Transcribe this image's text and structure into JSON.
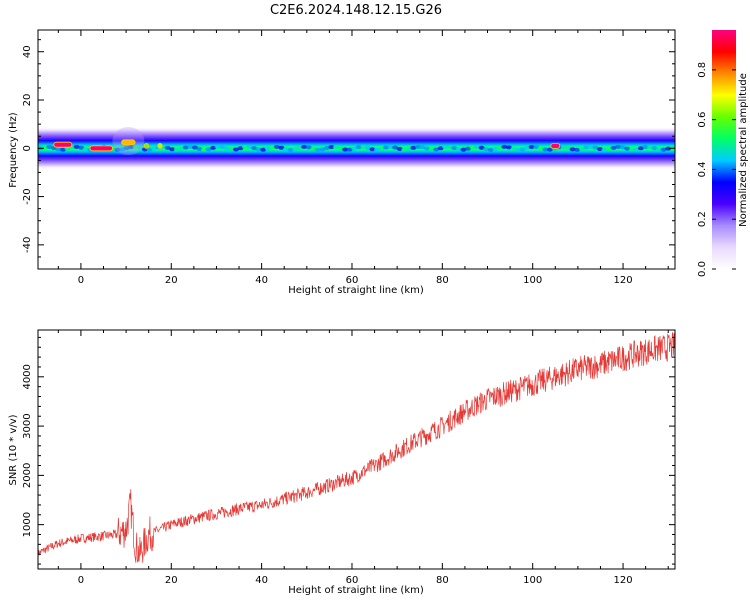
{
  "title": "C2E6.2024.148.12.15.G26",
  "chart_data": [
    {
      "type": "heatmap",
      "xlabel": "Height of straight line (km)",
      "ylabel": "Frequency (Hz)",
      "xlim": [
        -9.5,
        131.5
      ],
      "ylim": [
        -50,
        49
      ],
      "xticks": [
        0,
        20,
        40,
        60,
        80,
        100,
        120
      ],
      "yticks": [
        -40,
        -20,
        0,
        20,
        40
      ],
      "grid": false,
      "colorbar": {
        "label": "Normalized spectral amplitude",
        "range": [
          0,
          0.96
        ],
        "ticks": [
          0.0,
          0.2,
          0.4,
          0.6,
          0.8
        ]
      },
      "band": {
        "center_hz": 0,
        "half_width_outer_hz": 4,
        "half_width_core_hz": 1.8
      },
      "hotspots": [
        {
          "x": -6,
          "x2": -2,
          "y": 1.5,
          "value": 0.95
        },
        {
          "x": 2,
          "x2": 7,
          "y": 0,
          "value": 0.95
        },
        {
          "x": 9,
          "x2": 12,
          "y": 2.5,
          "value": 0.75
        },
        {
          "x": 14,
          "x2": 15,
          "y": 1,
          "value": 0.6
        },
        {
          "x": 17,
          "x2": 18,
          "y": 1,
          "value": 0.65
        },
        {
          "x": 104,
          "x2": 106,
          "y": 1,
          "value": 0.95
        }
      ]
    },
    {
      "type": "line",
      "xlabel": "Height of straight line (km)",
      "ylabel": "SNR (10 * v/v)",
      "xlim": [
        -9.5,
        131.5
      ],
      "ylim": [
        100,
        4950
      ],
      "xticks": [
        0,
        20,
        40,
        60,
        80,
        100,
        120
      ],
      "yticks": [
        1000,
        2000,
        3000,
        4000
      ],
      "grid": false,
      "color": "#e53935",
      "series": [
        {
          "x": [
            -9.5,
            -5,
            0,
            5,
            8,
            10,
            11,
            12,
            13,
            15,
            20,
            25,
            30,
            35,
            40,
            45,
            50,
            55,
            60,
            65,
            70,
            75,
            80,
            85,
            90,
            95,
            100,
            105,
            110,
            115,
            120,
            125,
            131.5
          ],
          "y": [
            420,
            620,
            720,
            770,
            800,
            900,
            1400,
            600,
            400,
            800,
            1000,
            1120,
            1220,
            1320,
            1400,
            1520,
            1650,
            1800,
            1950,
            2200,
            2480,
            2750,
            3000,
            3300,
            3550,
            3700,
            3850,
            4000,
            4150,
            4250,
            4380,
            4520,
            4620
          ]
        }
      ]
    }
  ],
  "colors": {
    "line": "#e53935",
    "colormap": [
      "#ffffff",
      "#e8d9ff",
      "#a78bff",
      "#4a00ff",
      "#0000ff",
      "#00ccff",
      "#00ff66",
      "#66ff00",
      "#ffff00",
      "#ff8800",
      "#ff0000",
      "#ff0080"
    ]
  }
}
